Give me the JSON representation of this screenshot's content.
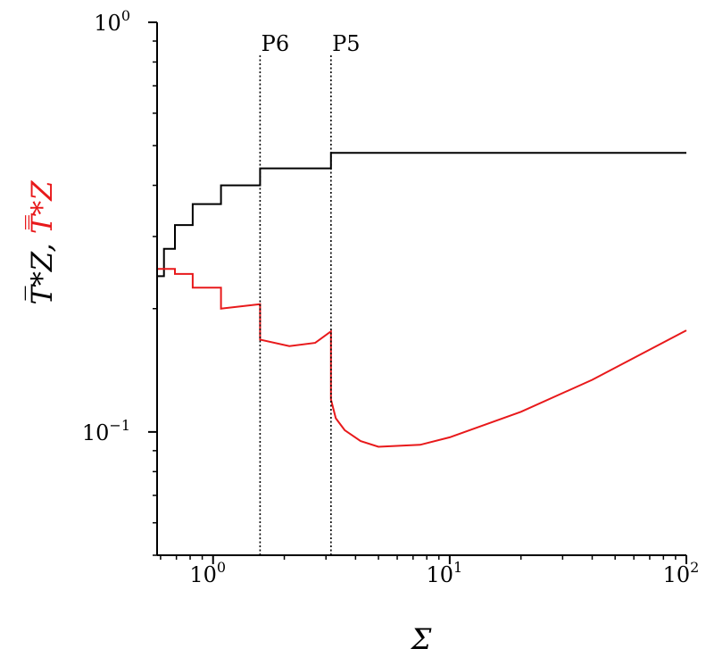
{
  "chart_data": {
    "type": "line",
    "title": "",
    "xlabel": "Σ",
    "ylabel": {
      "black_part": "T̅*Z, ",
      "red_part": "T̿*Z"
    },
    "xscale": "log",
    "yscale": "log",
    "xlim": [
      0.58,
      100
    ],
    "ylim": [
      0.05,
      1.0
    ],
    "xticks": [
      {
        "value": 1,
        "label": "10",
        "exp": "0"
      },
      {
        "value": 10,
        "label": "10",
        "exp": "1"
      },
      {
        "value": 100,
        "label": "10",
        "exp": "2"
      }
    ],
    "yticks": [
      {
        "value": 0.1,
        "label": "10",
        "exp": "−1"
      },
      {
        "value": 1.0,
        "label": "10",
        "exp": "0"
      }
    ],
    "grid": false,
    "legend": "none",
    "annotations": [
      {
        "x": 1.58,
        "label": "P6"
      },
      {
        "x": 3.15,
        "label": "P5"
      }
    ],
    "series": [
      {
        "color": "#000000",
        "points": [
          [
            0.58,
            0.24
          ],
          [
            0.62,
            0.24
          ],
          [
            0.62,
            0.28
          ],
          [
            0.69,
            0.28
          ],
          [
            0.69,
            0.32
          ],
          [
            0.82,
            0.32
          ],
          [
            0.82,
            0.36
          ],
          [
            1.08,
            0.36
          ],
          [
            1.08,
            0.4
          ],
          [
            1.58,
            0.4
          ],
          [
            1.58,
            0.44
          ],
          [
            3.15,
            0.44
          ],
          [
            3.15,
            0.48
          ],
          [
            100,
            0.48
          ]
        ]
      },
      {
        "color": "#e8191b",
        "points": [
          [
            0.58,
            0.25
          ],
          [
            0.69,
            0.25
          ],
          [
            0.69,
            0.243
          ],
          [
            0.82,
            0.243
          ],
          [
            0.82,
            0.225
          ],
          [
            1.08,
            0.225
          ],
          [
            1.08,
            0.2
          ],
          [
            1.58,
            0.205
          ],
          [
            1.58,
            0.168
          ],
          [
            2.1,
            0.162
          ],
          [
            2.7,
            0.165
          ],
          [
            3.15,
            0.176
          ],
          [
            3.15,
            0.12
          ],
          [
            3.3,
            0.108
          ],
          [
            3.6,
            0.101
          ],
          [
            4.2,
            0.095
          ],
          [
            5.0,
            0.092
          ],
          [
            7.5,
            0.093
          ],
          [
            10,
            0.097
          ],
          [
            20,
            0.112
          ],
          [
            40,
            0.134
          ],
          [
            100,
            0.177
          ]
        ]
      }
    ]
  }
}
